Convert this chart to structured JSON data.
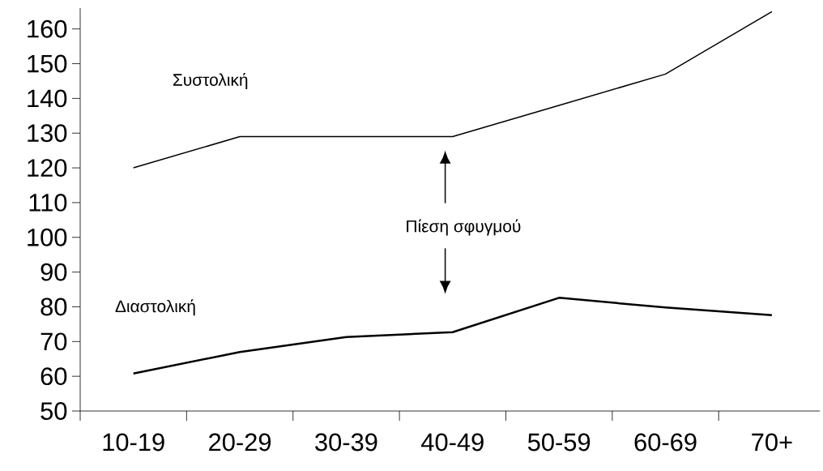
{
  "chart_data": {
    "type": "line",
    "categories": [
      "10-19",
      "20-29",
      "30-39",
      "40-49",
      "50-59",
      "60-69",
      "70+"
    ],
    "series": [
      {
        "name": "Συστολική",
        "color": "#000000",
        "values": [
          120,
          129,
          129,
          129,
          138,
          147,
          165
        ]
      },
      {
        "name": "Διαστολική",
        "color": "#000000",
        "values": [
          60.8,
          67,
          71.3,
          72.7,
          82.6,
          79.8,
          77.6
        ]
      }
    ],
    "ylim": [
      50,
      166
    ],
    "yticks": [
      50,
      60,
      70,
      80,
      90,
      100,
      110,
      120,
      130,
      140,
      150,
      160
    ],
    "annotations": [
      "Πίεση σφυγμού"
    ],
    "grid": false,
    "legend": false,
    "marker": "none",
    "line_style": "solid"
  }
}
